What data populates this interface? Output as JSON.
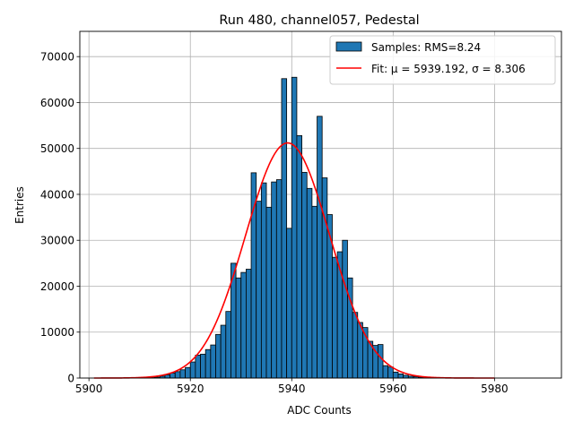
{
  "chart_data": {
    "type": "bar",
    "title": "Run 480, channel057, Pedestal",
    "xlabel": "ADC Counts",
    "ylabel": "Entries",
    "xlim": [
      5898.2,
      5993.2
    ],
    "ylim": [
      0,
      75500
    ],
    "xticks": [
      5900,
      5920,
      5940,
      5960,
      5980
    ],
    "yticks": [
      0,
      10000,
      20000,
      30000,
      40000,
      50000,
      60000,
      70000
    ],
    "grid": true,
    "legend_position": "top-right",
    "series": [
      {
        "name": "Samples: RMS=8.24",
        "kind": "histogram",
        "bin_width": 1,
        "bar_color": "#1f77b4",
        "edge_color": "#000000",
        "bin_left_edges": [
          5910,
          5911,
          5912,
          5913,
          5914,
          5915,
          5916,
          5917,
          5918,
          5919,
          5920,
          5921,
          5922,
          5923,
          5924,
          5925,
          5926,
          5927,
          5928,
          5929,
          5930,
          5931,
          5932,
          5933,
          5934,
          5935,
          5936,
          5937,
          5938,
          5939,
          5940,
          5941,
          5942,
          5943,
          5944,
          5945,
          5946,
          5947,
          5948,
          5949,
          5950,
          5951,
          5952,
          5953,
          5954,
          5955,
          5956,
          5957,
          5958,
          5959,
          5960,
          5961,
          5962,
          5963,
          5964,
          5965,
          5966,
          5967,
          5968,
          5969
        ],
        "counts": [
          20,
          50,
          100,
          200,
          400,
          700,
          1100,
          1400,
          1800,
          2300,
          3500,
          5000,
          5200,
          6200,
          7200,
          9500,
          11500,
          14500,
          25000,
          21800,
          23000,
          23700,
          44700,
          38500,
          42500,
          37200,
          42700,
          43200,
          65200,
          32600,
          65500,
          52800,
          44800,
          41300,
          37400,
          57000,
          43600,
          35600,
          26300,
          27500,
          30000,
          21800,
          14300,
          12100,
          11000,
          8000,
          7100,
          7300,
          2700,
          2400,
          1300,
          900,
          600,
          400,
          300,
          200,
          100,
          50,
          30,
          10
        ]
      },
      {
        "name": "Fit: μ = 5939.192, σ = 8.306",
        "kind": "gaussian-fit",
        "color": "#ff0000",
        "amplitude": 51200,
        "mu": 5939.192,
        "sigma": 8.306,
        "x_range": [
          5901,
          5980
        ]
      }
    ]
  }
}
